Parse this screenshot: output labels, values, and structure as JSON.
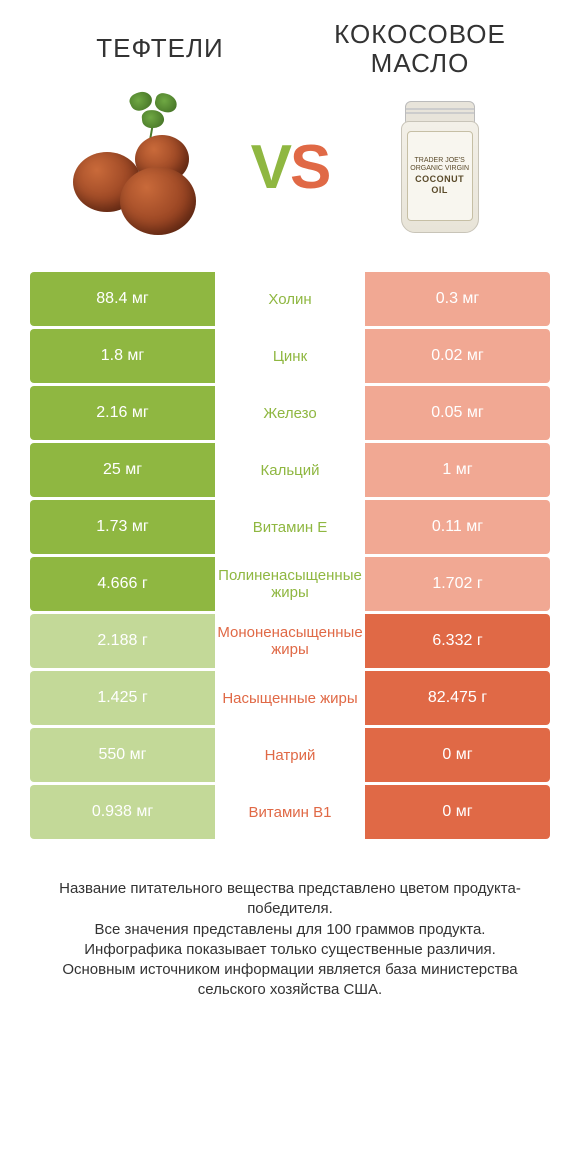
{
  "titles": {
    "left": "ТЕФТЕЛИ",
    "right_line1": "КОКОСОВОЕ",
    "right_line2": "МАСЛО"
  },
  "vs": {
    "v": "V",
    "s": "S"
  },
  "jar_label": {
    "line1": "TRADER JOE'S",
    "line2": "ORGANIC VIRGIN",
    "big1": "COCONUT",
    "big2": "OIL"
  },
  "colors": {
    "left_strong": "#8fb741",
    "left_weak": "#c3d998",
    "right_strong": "#e06946",
    "right_weak": "#f1a893",
    "background": "#ffffff"
  },
  "comparison": {
    "rows": [
      {
        "left": "88.4 мг",
        "label": "Холин",
        "right": "0.3 мг",
        "winner": "left"
      },
      {
        "left": "1.8 мг",
        "label": "Цинк",
        "right": "0.02 мг",
        "winner": "left"
      },
      {
        "left": "2.16 мг",
        "label": "Железо",
        "right": "0.05 мг",
        "winner": "left"
      },
      {
        "left": "25 мг",
        "label": "Кальций",
        "right": "1 мг",
        "winner": "left"
      },
      {
        "left": "1.73 мг",
        "label": "Витамин E",
        "right": "0.11 мг",
        "winner": "left"
      },
      {
        "left": "4.666 г",
        "label": "Полиненасыщенные жиры",
        "right": "1.702 г",
        "winner": "left"
      },
      {
        "left": "2.188 г",
        "label": "Мононенасыщенные жиры",
        "right": "6.332 г",
        "winner": "right"
      },
      {
        "left": "1.425 г",
        "label": "Насыщенные жиры",
        "right": "82.475 г",
        "winner": "right"
      },
      {
        "left": "550 мг",
        "label": "Натрий",
        "right": "0 мг",
        "winner": "right"
      },
      {
        "left": "0.938 мг",
        "label": "Витамин B1",
        "right": "0 мг",
        "winner": "right"
      }
    ]
  },
  "footer": {
    "line1": "Название питательного вещества представлено цветом продукта-победителя.",
    "line2": "Все значения представлены для 100 граммов продукта.",
    "line3": "Инфографика показывает только существенные различия.",
    "line4": "Основным источником информации является база министерства сельского хозяйства США."
  }
}
